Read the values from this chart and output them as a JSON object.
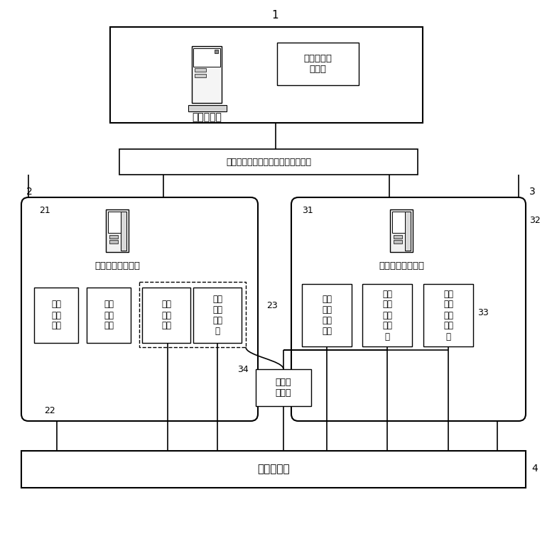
{
  "bg_color": "#ffffff",
  "labels": {
    "n1": "1",
    "n2": "2",
    "n3": "3",
    "n4": "4",
    "n21": "21",
    "n22": "22",
    "n23": "23",
    "n31": "31",
    "n32": "32",
    "n33": "33",
    "n34": "34",
    "main_ctrl": "测试主控机",
    "sw_module": "软件集成测\n试模块",
    "network": "网络通信设备（以太网或串口通信）",
    "hmi_module": "人机接口测试模块",
    "comm_module": "通信接口测试模块",
    "sim_ctrl": "模拟\n操控\n模块",
    "machine_vision": "机器\n视觉\n模块",
    "voltage_sample": "电压\n采样\n单板",
    "time_analysis": "时间\n分析\n子模\n块",
    "ethernet_test": "以太\n网测\n试子\n模块",
    "serial_test": "串口\n通信\n测试\n子模\n块",
    "bus_test": "总线\n通信\n测试\n子模\n块",
    "fault_inject": "故障注\n入设备",
    "display": "被测显示器"
  }
}
